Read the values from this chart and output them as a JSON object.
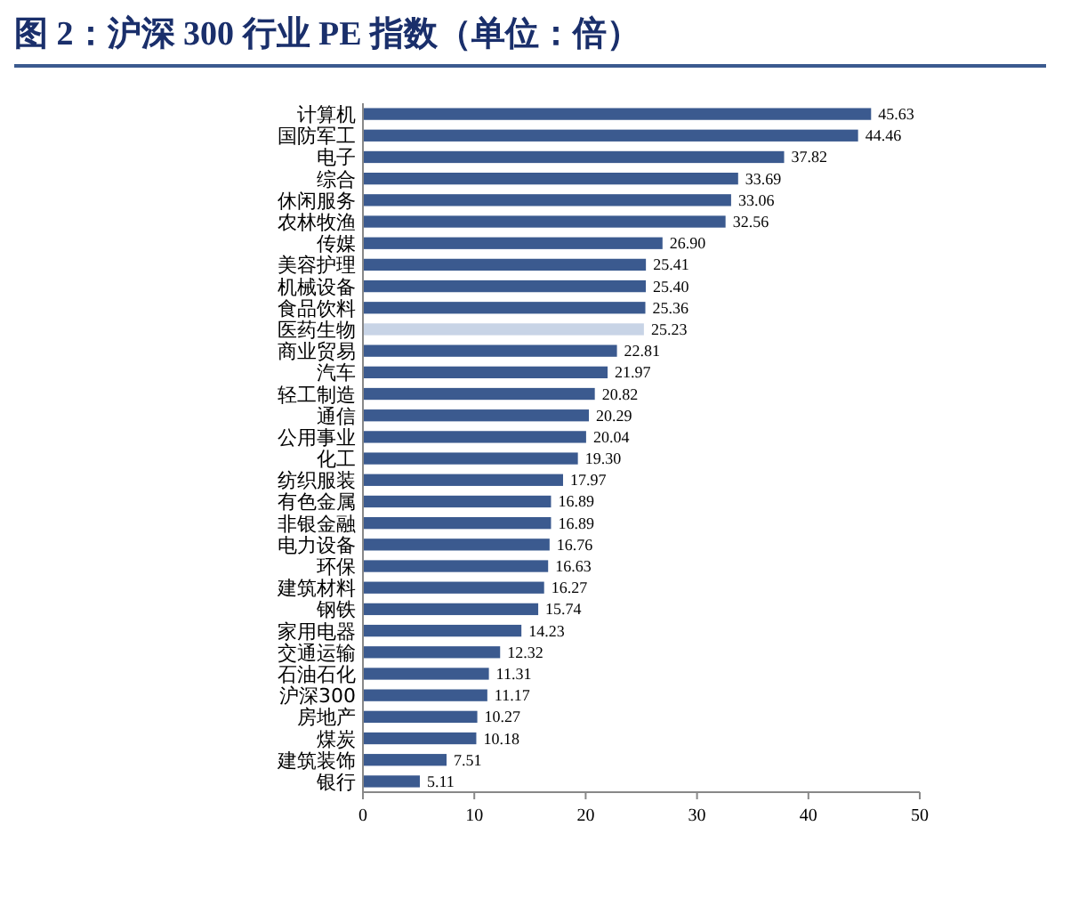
{
  "chart_data": {
    "type": "bar",
    "orientation": "horizontal",
    "title": "图 2：沪深 300 行业 PE 指数（单位：倍）",
    "categories": [
      "计算机",
      "国防军工",
      "电子",
      "综合",
      "休闲服务",
      "农林牧渔",
      "传媒",
      "美容护理",
      "机械设备",
      "食品饮料",
      "医药生物",
      "商业贸易",
      "汽车",
      "轻工制造",
      "通信",
      "公用事业",
      "化工",
      "纺织服装",
      "有色金属",
      "非银金融",
      "电力设备",
      "环保",
      "建筑材料",
      "钢铁",
      "家用电器",
      "交通运输",
      "石油石化",
      "沪深300",
      "房地产",
      "煤炭",
      "建筑装饰",
      "银行"
    ],
    "values": [
      45.63,
      44.46,
      37.82,
      33.69,
      33.06,
      32.56,
      26.9,
      25.41,
      25.4,
      25.36,
      25.23,
      22.81,
      21.97,
      20.82,
      20.29,
      20.04,
      19.3,
      17.97,
      16.89,
      16.89,
      16.76,
      16.63,
      16.27,
      15.74,
      14.23,
      12.32,
      11.31,
      11.17,
      10.27,
      10.18,
      7.51,
      5.11
    ],
    "value_labels": [
      "45.63",
      "44.46",
      "37.82",
      "33.69",
      "33.06",
      "32.56",
      "26.90",
      "25.41",
      "25.40",
      "25.36",
      "25.23",
      "22.81",
      "21.97",
      "20.82",
      "20.29",
      "20.04",
      "19.30",
      "17.97",
      "16.89",
      "16.89",
      "16.76",
      "16.63",
      "16.27",
      "15.74",
      "14.23",
      "12.32",
      "11.31",
      "11.17",
      "10.27",
      "10.18",
      "7.51",
      "5.11"
    ],
    "colors": [
      "#3b5a8f",
      "#3b5a8f",
      "#3b5a8f",
      "#3b5a8f",
      "#3b5a8f",
      "#3b5a8f",
      "#3b5a8f",
      "#3b5a8f",
      "#3b5a8f",
      "#3b5a8f",
      "#c8d4e6",
      "#3b5a8f",
      "#3b5a8f",
      "#3b5a8f",
      "#3b5a8f",
      "#3b5a8f",
      "#3b5a8f",
      "#3b5a8f",
      "#3b5a8f",
      "#3b5a8f",
      "#3b5a8f",
      "#3b5a8f",
      "#3b5a8f",
      "#3b5a8f",
      "#3b5a8f",
      "#3b5a8f",
      "#3b5a8f",
      "#3b5a8f",
      "#3b5a8f",
      "#3b5a8f",
      "#3b5a8f",
      "#3b5a8f"
    ],
    "xlim": [
      0,
      50
    ],
    "xticks": [
      0,
      10,
      20,
      30,
      40,
      50
    ]
  }
}
